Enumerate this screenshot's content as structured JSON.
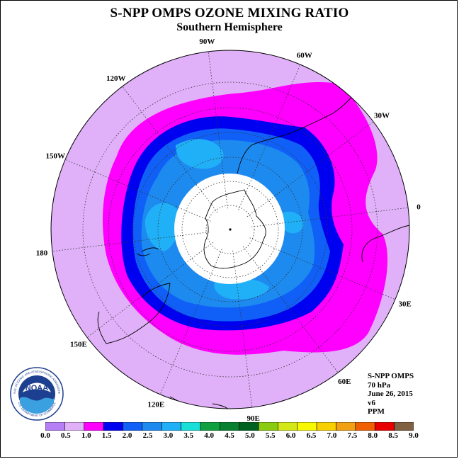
{
  "title": "S-NPP OMPS OZONE MIXING RATIO",
  "subtitle": "Southern Hemisphere",
  "longitude_labels": [
    "90W",
    "60W",
    "30W",
    "0",
    "30E",
    "60E",
    "90E",
    "120E",
    "150E",
    "180",
    "150W",
    "120W"
  ],
  "info": {
    "instrument": "S-NPP OMPS",
    "level": "70 hPa",
    "date": "June 26, 2015",
    "version": "v6",
    "units": "PPM"
  },
  "logo": {
    "text": "NOAA",
    "ring_text": "NATIONAL OCEANIC AND ATMOSPHERIC ADMINISTRATION",
    "bottom_text": "U.S. DEPARTMENT OF COMMERCE"
  },
  "colorbar": {
    "ticks": [
      "0.0",
      "0.5",
      "1.0",
      "1.5",
      "2.0",
      "2.5",
      "3.0",
      "3.5",
      "4.0",
      "4.5",
      "5.0",
      "5.5",
      "6.0",
      "6.5",
      "7.0",
      "7.5",
      "8.0",
      "8.5",
      "9.0"
    ],
    "colors": [
      "#b57ff5",
      "#e0b0f8",
      "#ff00ff",
      "#0000f0",
      "#1060f8",
      "#1d8af0",
      "#20b0f8",
      "#18e0d8",
      "#10a040",
      "#088030",
      "#006020",
      "#8ccc10",
      "#d4e818",
      "#f8f800",
      "#f8d000",
      "#f0a010",
      "#f06000",
      "#e80000",
      "#806040"
    ]
  },
  "map_levels": {
    "outer": "#e0b0f8",
    "band_1_0": "#ff00ff",
    "band_1_5": "#0000f0",
    "band_2_0": "#1060f8",
    "band_2_5": "#1d8af0",
    "band_3_0": "#20b0f8",
    "no_data": "#ffffff"
  }
}
